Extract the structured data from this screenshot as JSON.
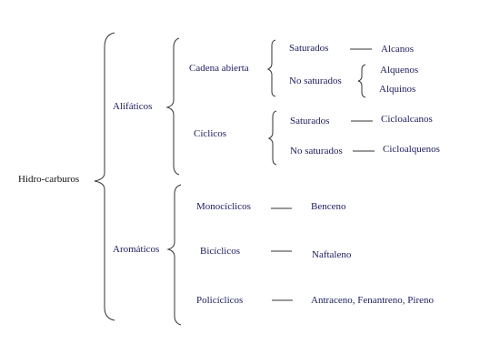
{
  "root": "Hidro-carburos",
  "alifaticos": {
    "label": "Alifáticos",
    "cadena_abierta": {
      "label": "Cadena abierta",
      "saturados": "Saturados",
      "alcanos": "Alcanos",
      "no_saturados": "No saturados",
      "alquenos": "Alquenos",
      "alquinos": "Alquinos"
    },
    "ciclicos": {
      "label": "Cíclicos",
      "saturados": "Saturados",
      "cicloalcanos": "Cicloalcanos",
      "no_saturados": "No saturados",
      "cicloalquenos": "Cicloalquenos"
    }
  },
  "aromaticos": {
    "label": "Aromáticos",
    "monociclicos": "Monocíclicos",
    "benceno": "Benceno",
    "biciclicos": "Bicíclicos",
    "naftaleno": "Naftaleno",
    "policiclicos": "Policíclicos",
    "policiclicos_ejemplos": "Antraceno, Fenantreno, Pireno"
  },
  "colors": {
    "text": "#1a1a6e",
    "line": "#333333"
  }
}
